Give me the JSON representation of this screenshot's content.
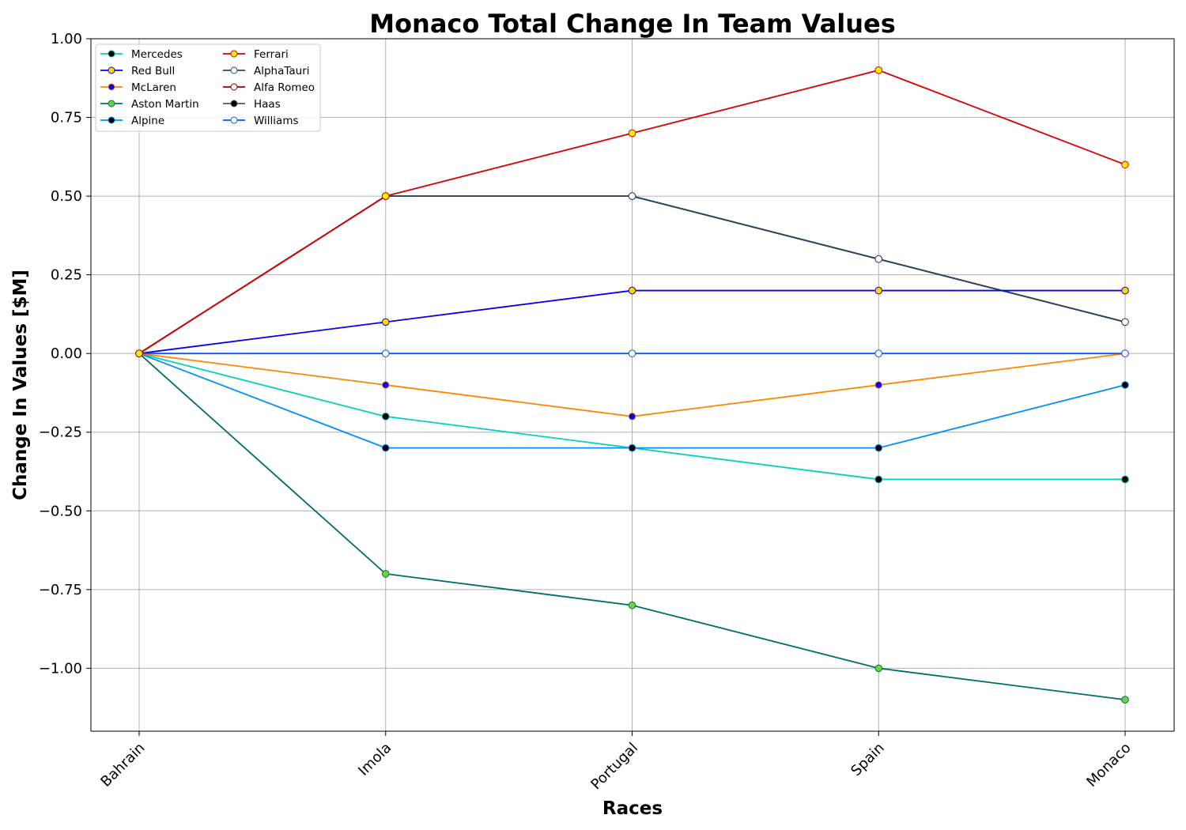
{
  "chart_data": {
    "type": "line",
    "title": "Monaco Total Change In Team Values",
    "xlabel": "Races",
    "ylabel": "Change In Values [$M]",
    "categories": [
      "Bahrain",
      "Imola",
      "Portugal",
      "Spain",
      "Monaco"
    ],
    "ylim": [
      -1.2,
      1.0
    ],
    "yticks": [
      1.0,
      0.75,
      0.5,
      0.25,
      0.0,
      -0.25,
      -0.5,
      -0.75,
      -1.0
    ],
    "ytick_labels": [
      "1.00",
      "0.75",
      "0.50",
      "0.25",
      "0.00",
      "−0.25",
      "−0.50",
      "−0.75",
      "−1.00"
    ],
    "grid": true,
    "legend_placement": "top-left",
    "legend_columns": 2,
    "series": [
      {
        "name": "Mercedes",
        "values": [
          0,
          -0.2,
          -0.3,
          -0.4,
          -0.4
        ],
        "line_color": "#00d2be",
        "marker_face": "#000000",
        "marker_edge": "#00a898"
      },
      {
        "name": "Red Bull",
        "values": [
          0,
          0.1,
          0.2,
          0.2,
          0.2
        ],
        "line_color": "#0600ef",
        "marker_face": "#ffd700",
        "marker_edge": "#0600ef"
      },
      {
        "name": "McLaren",
        "values": [
          0,
          -0.1,
          -0.2,
          -0.1,
          0.0
        ],
        "line_color": "#ff8700",
        "marker_face": "#0600ef",
        "marker_edge": "#ff8700"
      },
      {
        "name": "Aston Martin",
        "values": [
          0,
          -0.7,
          -0.8,
          -1.0,
          -1.1
        ],
        "line_color": "#006f62",
        "marker_face": "#6cd33a",
        "marker_edge": "#006f62"
      },
      {
        "name": "Alpine",
        "values": [
          0,
          -0.3,
          -0.3,
          -0.3,
          -0.1
        ],
        "line_color": "#0090ff",
        "marker_face": "#000000",
        "marker_edge": "#0090ff"
      },
      {
        "name": "Ferrari",
        "values": [
          0,
          0.5,
          0.7,
          0.9,
          0.6
        ],
        "line_color": "#dc0000",
        "marker_face": "#fff200",
        "marker_edge": "#dc0000"
      },
      {
        "name": "AlphaTauri",
        "values": [
          0,
          0.5,
          0.5,
          0.3,
          0.1
        ],
        "line_color": "#2b4562",
        "marker_face": "#ffffff",
        "marker_edge": "#2b4562"
      },
      {
        "name": "Alfa Romeo",
        "values": [
          0,
          0.5,
          0.5,
          0.3,
          0.1
        ],
        "line_color": "#900000",
        "marker_face": "#ffffff",
        "marker_edge": "#900000"
      },
      {
        "name": "Haas",
        "values": [
          0,
          0.5,
          0.5,
          0.3,
          0.1
        ],
        "line_color": "#5a5a5a",
        "marker_face": "#000000",
        "marker_edge": "#5a5a5a"
      },
      {
        "name": "Williams",
        "values": [
          0,
          0,
          0,
          0,
          0
        ],
        "line_color": "#005aff",
        "marker_face": "#ffffff",
        "marker_edge": "#005aff"
      }
    ],
    "draw_order": [
      7,
      8,
      6,
      0,
      1,
      2,
      3,
      4,
      9,
      5
    ]
  }
}
